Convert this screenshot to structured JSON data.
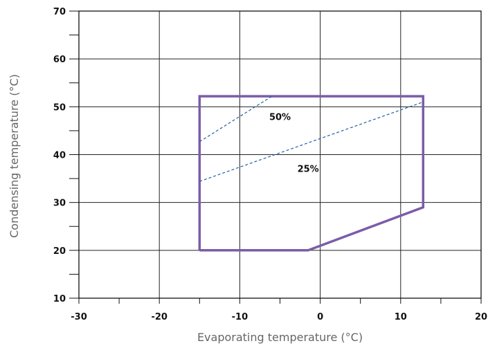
{
  "chart_data": {
    "type": "line",
    "title": "",
    "xlabel": "Evaporating temperature (°C)",
    "ylabel": "Condensing temperature (°C)",
    "xlim": [
      -30,
      20
    ],
    "ylim": [
      10,
      70
    ],
    "x_major_ticks": [
      -30,
      -20,
      -10,
      0,
      10,
      20
    ],
    "x_tick_labels": [
      "-30",
      "-20",
      "-10",
      "0",
      "10",
      "20"
    ],
    "y_major_ticks": [
      10,
      20,
      30,
      40,
      50,
      60,
      70
    ],
    "y_tick_labels": [
      "10",
      "20",
      "30",
      "40",
      "50",
      "60",
      "70"
    ],
    "grid": true,
    "series": [
      {
        "style": "solid",
        "color": "#7b5ca8",
        "points": [
          [
            -15,
            20
          ],
          [
            -1.5,
            20
          ],
          [
            12.8,
            29
          ],
          [
            12.8,
            52.2
          ],
          [
            -15,
            52.2
          ],
          [
            -15,
            20
          ]
        ]
      },
      {
        "style": "dashed",
        "color": "#1f5fa8",
        "points": [
          [
            -15,
            42.7
          ],
          [
            -6,
            52.2
          ]
        ]
      },
      {
        "style": "dashed",
        "color": "#1f5fa8",
        "points": [
          [
            -15,
            34.4
          ],
          [
            12.8,
            51
          ]
        ]
      }
    ],
    "annotations": [
      {
        "text": "50%",
        "x": -5,
        "y": 47.2
      },
      {
        "text": "25%",
        "x": -1.5,
        "y": 36.4
      }
    ]
  }
}
